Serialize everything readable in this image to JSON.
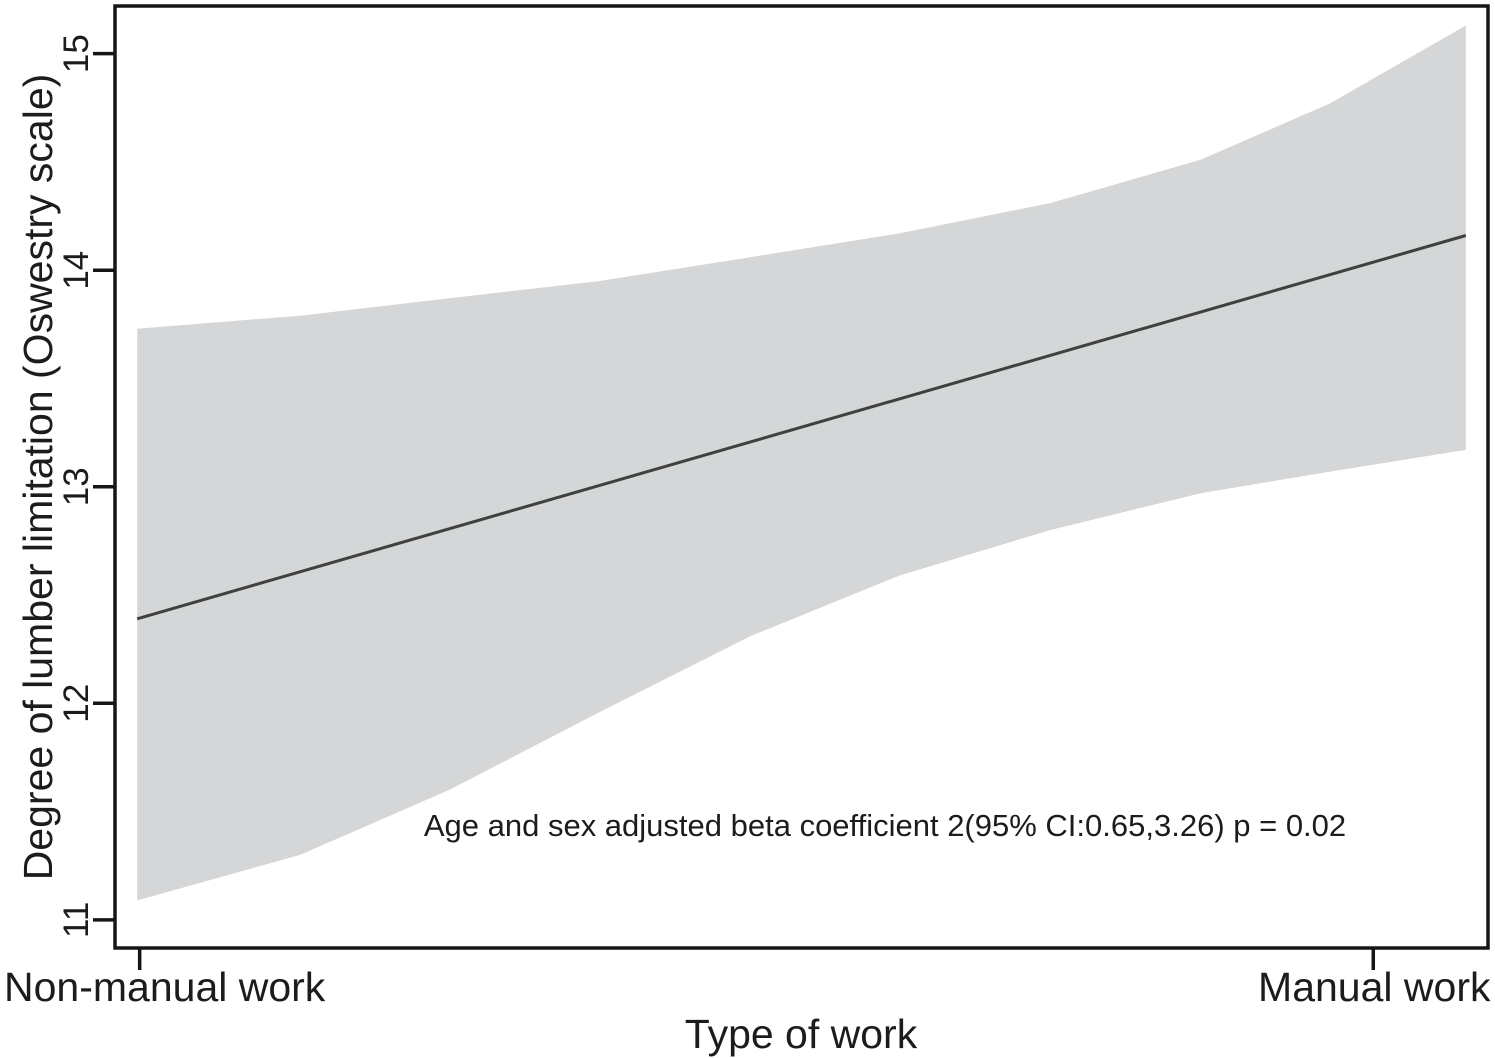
{
  "figure": {
    "background": "#ffffff"
  },
  "chart_data": {
    "type": "line",
    "title": "",
    "xlabel": "Type of work",
    "ylabel": "Degree of lumber limitation (Oswestry scale)",
    "x_categories": [
      {
        "label": "Non-manual work",
        "x": 0
      },
      {
        "label": "Manual work",
        "x": 1
      }
    ],
    "yticks": [
      11,
      12,
      13,
      14,
      15
    ],
    "ylim": [
      10.87,
      15.22
    ],
    "xlim": [
      -0.02,
      1.093
    ],
    "grid": false,
    "legend": "none",
    "fit_line": {
      "x": [
        -0.002,
        1.075
      ],
      "y": [
        12.39,
        14.16
      ]
    },
    "ci_band": {
      "level": "95%",
      "x": [
        -0.002,
        0.13,
        0.251,
        0.373,
        0.495,
        0.616,
        0.738,
        0.86,
        0.965,
        1.075
      ],
      "upper": [
        13.73,
        13.79,
        13.87,
        13.95,
        14.06,
        14.17,
        14.31,
        14.51,
        14.77,
        15.13
      ],
      "lower": [
        11.09,
        11.3,
        11.6,
        11.96,
        12.31,
        12.59,
        12.8,
        12.97,
        13.07,
        13.17
      ]
    },
    "annotation": "Age and sex adjusted beta coefficient 2(95% CI:0.65,3.26) p = 0.02",
    "colors": {
      "band": "#d4d6d7",
      "fit_line": "#3f4040",
      "axis": "#161616",
      "text": "#1c1c1c"
    }
  }
}
